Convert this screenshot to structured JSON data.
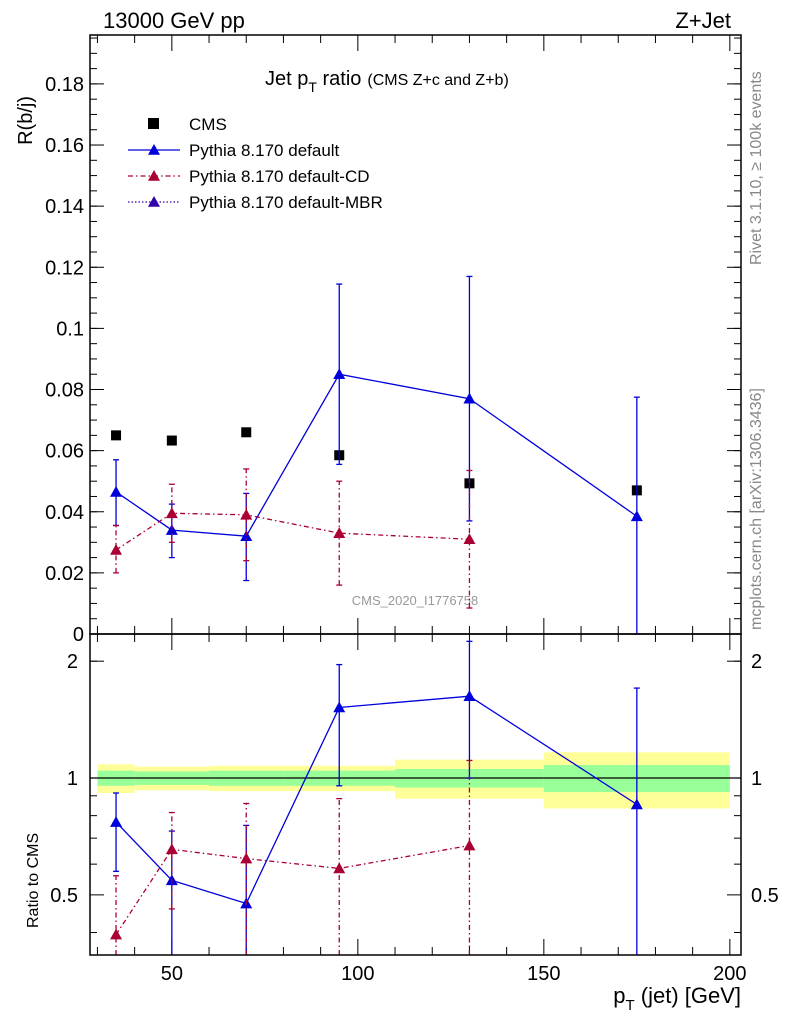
{
  "header": {
    "left": "13000 GeV pp",
    "right": "Z+Jet"
  },
  "side": {
    "rivet": "Rivet 3.1.10, ≥ 100k events",
    "mcplots": "mcplots.cern.ch [arXiv:1306.3436]"
  },
  "watermark": "CMS_2020_I1776758",
  "colors": {
    "cms": "#000000",
    "default": "#0000dd",
    "cd": "#aa0033",
    "mbr": "#3300aa",
    "band_inner": "#99ff99",
    "band_outer": "#ffff99"
  },
  "chart_data": [
    {
      "type": "scatter",
      "title": "Jet p",
      "title_sub": "T",
      "title_tail": " ratio",
      "title_note": "(CMS  Z+c and Z+b)",
      "ylabel": "R(b/j)",
      "xlim": [
        28,
        203
      ],
      "ylim": [
        0,
        0.196
      ],
      "yticks": [
        0,
        0.02,
        0.04,
        0.06,
        0.08,
        0.1,
        0.12,
        0.14,
        0.16,
        0.18
      ],
      "ytick_labels": [
        "0",
        "0.02",
        "0.04",
        "0.06",
        "0.08",
        "0.1",
        "0.12",
        "0.14",
        "0.16",
        "0.18"
      ],
      "legend": {
        "position": "top-left",
        "entries": [
          {
            "label": "CMS",
            "key": "cms"
          },
          {
            "label": "Pythia 8.170 default",
            "key": "default"
          },
          {
            "label": "Pythia 8.170 default-CD",
            "key": "cd"
          },
          {
            "label": "Pythia 8.170 default-MBR",
            "key": "mbr"
          }
        ]
      },
      "series": [
        {
          "name": "CMS",
          "key": "cms",
          "x": [
            35,
            50,
            70,
            95,
            130,
            175
          ],
          "y": [
            0.065,
            0.0633,
            0.066,
            0.0585,
            0.0493,
            0.047
          ]
        },
        {
          "name": "Pythia 8.170 default",
          "key": "default",
          "x": [
            35,
            50,
            70,
            95,
            130,
            175
          ],
          "y": [
            0.0465,
            0.034,
            0.032,
            0.085,
            0.077,
            0.0385
          ],
          "err_lo": [
            0.0355,
            0.025,
            0.0175,
            0.0555,
            0.037,
            0.0
          ],
          "err_hi": [
            0.057,
            0.0425,
            0.046,
            0.1145,
            0.117,
            0.0775
          ]
        },
        {
          "name": "Pythia 8.170 default-CD",
          "key": "cd",
          "x": [
            35,
            50,
            70,
            95,
            130
          ],
          "y": [
            0.0275,
            0.0395,
            0.039,
            0.033,
            0.031
          ],
          "err_lo": [
            0.02,
            0.03,
            0.024,
            0.016,
            0.0085
          ],
          "err_hi": [
            0.0355,
            0.049,
            0.054,
            0.05,
            0.0535
          ]
        }
      ]
    },
    {
      "type": "scatter",
      "ylabel": "Ratio to CMS",
      "xlabel": "p",
      "xlabel_sub": "T",
      "xlabel_tail": " (jet) [GeV]",
      "xlim": [
        28,
        203
      ],
      "ylim": [
        0.35,
        2.35
      ],
      "xticks": [
        50,
        100,
        150,
        200
      ],
      "xtick_labels": [
        "50",
        "100",
        "150",
        "200"
      ],
      "yticks": [
        0.5,
        1,
        2
      ],
      "ytick_labels": [
        "0.5",
        "1",
        "2"
      ],
      "bands": [
        {
          "x0": 30,
          "x1": 40,
          "inner": [
            0.955,
            1.045
          ],
          "outer": [
            0.915,
            1.085
          ]
        },
        {
          "x0": 40,
          "x1": 60,
          "inner": [
            0.96,
            1.04
          ],
          "outer": [
            0.93,
            1.07
          ]
        },
        {
          "x0": 60,
          "x1": 80,
          "inner": [
            0.955,
            1.045
          ],
          "outer": [
            0.925,
            1.075
          ]
        },
        {
          "x0": 80,
          "x1": 110,
          "inner": [
            0.955,
            1.045
          ],
          "outer": [
            0.925,
            1.075
          ]
        },
        {
          "x0": 110,
          "x1": 150,
          "inner": [
            0.945,
            1.055
          ],
          "outer": [
            0.885,
            1.115
          ]
        },
        {
          "x0": 150,
          "x1": 200,
          "inner": [
            0.92,
            1.08
          ],
          "outer": [
            0.835,
            1.165
          ]
        }
      ],
      "series": [
        {
          "name": "Pythia 8.170 default",
          "key": "default",
          "x": [
            35,
            50,
            70,
            95,
            130,
            175
          ],
          "y": [
            0.77,
            0.545,
            0.475,
            1.52,
            1.625,
            0.855
          ],
          "err_lo": [
            0.575,
            0.35,
            0.35,
            0.955,
            1.0,
            0.35
          ],
          "err_hi": [
            0.915,
            0.73,
            0.755,
            1.96,
            2.25,
            1.705
          ]
        },
        {
          "name": "Pythia 8.170 default-CD",
          "key": "cd",
          "x": [
            35,
            50,
            70,
            95,
            130
          ],
          "y": [
            0.395,
            0.655,
            0.62,
            0.585,
            0.67
          ],
          "err_lo": [
            0.35,
            0.46,
            0.35,
            0.35,
            0.35
          ],
          "err_hi": [
            0.56,
            0.815,
            0.86,
            0.885,
            1.11
          ]
        }
      ]
    }
  ]
}
